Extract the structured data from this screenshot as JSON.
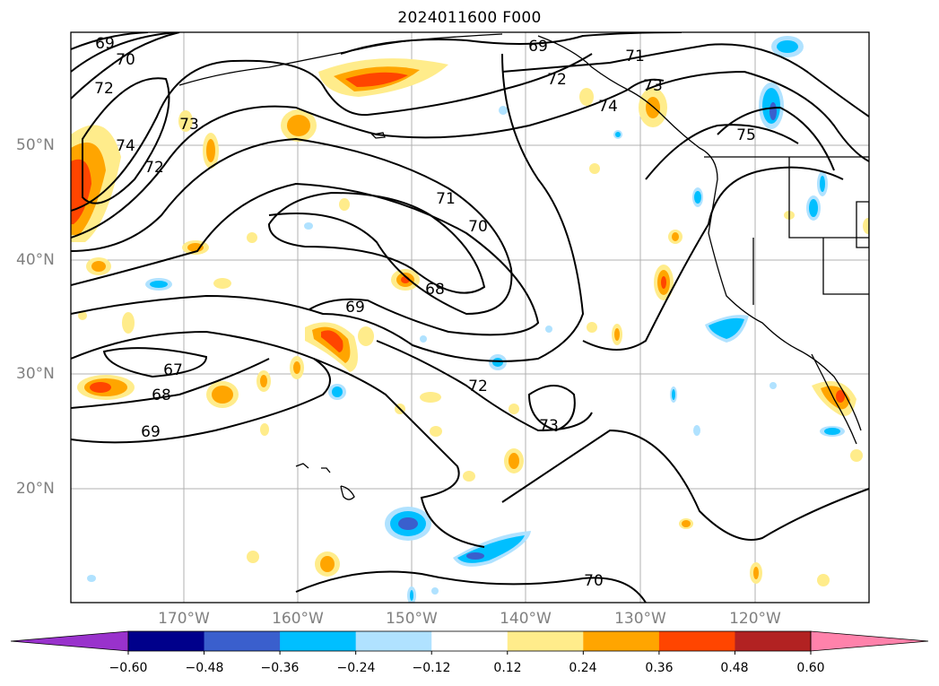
{
  "title": "2024011600 F000",
  "lat_labels": [
    "50°N",
    "40°N",
    "30°N",
    "20°N"
  ],
  "lon_labels": [
    "170°W",
    "160°W",
    "150°W",
    "140°W",
    "130°W",
    "120°W"
  ],
  "contour_labels": [
    "69",
    "70",
    "72",
    "73",
    "74",
    "72",
    "71",
    "70",
    "69",
    "68",
    "67",
    "68",
    "69",
    "72",
    "73",
    "70",
    "69",
    "71",
    "72",
    "73",
    "74",
    "75"
  ],
  "colorbar": {
    "tick_labels": [
      "−0.60",
      "−0.48",
      "−0.36",
      "−0.24",
      "−0.12",
      "0.12",
      "0.24",
      "0.36",
      "0.48",
      "0.60"
    ],
    "colors": [
      "#9932cc",
      "#00008b",
      "#3a5fcd",
      "#00bfff",
      "#b0e2ff",
      "#ffffff",
      "#ffec8b",
      "#ffa500",
      "#ff4500",
      "#b22222",
      "#ff82ab"
    ]
  }
}
